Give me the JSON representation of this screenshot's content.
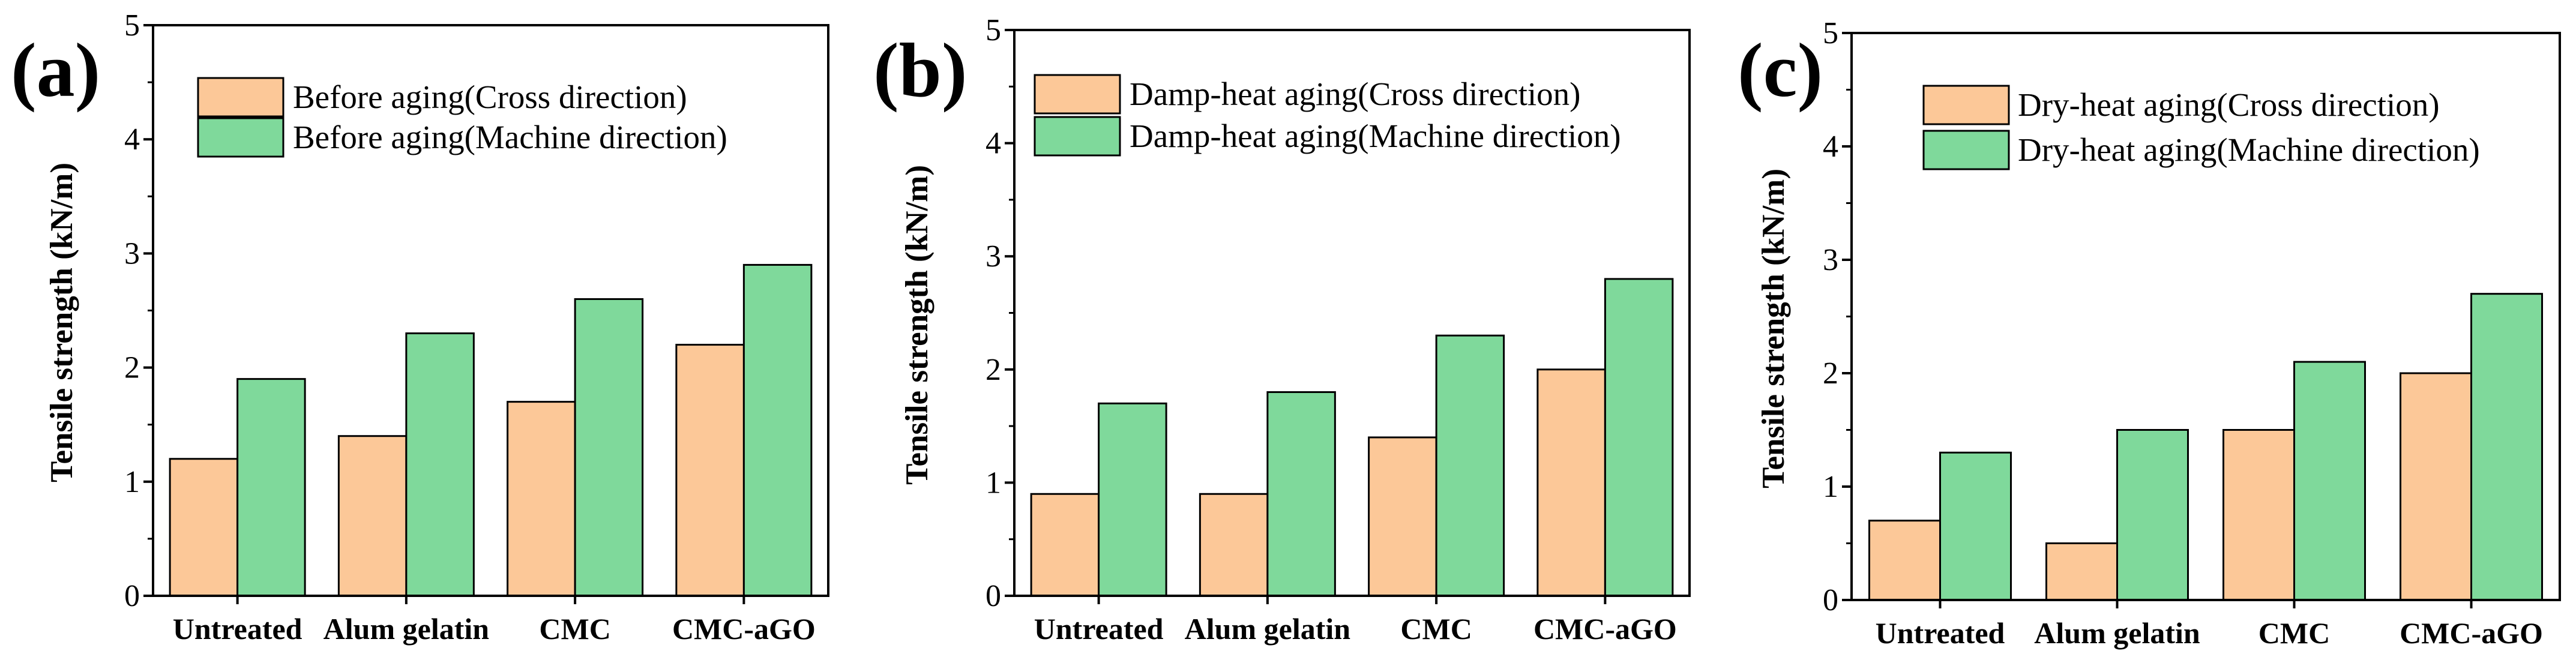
{
  "colors": {
    "cross": "#fcc898",
    "machine": "#7fd99b",
    "stroke": "#000000",
    "background": "#ffffff"
  },
  "chart_data": [
    {
      "type": "bar",
      "panel_label": "(a)",
      "title": "",
      "xlabel": "",
      "ylabel": "Tensile strength (kN/m)",
      "categories": [
        "Untreated",
        "Alum gelatin",
        "CMC",
        "CMC-aGO"
      ],
      "series": [
        {
          "name": "Before aging(Cross direction)",
          "values": [
            1.2,
            1.4,
            1.7,
            2.2
          ]
        },
        {
          "name": "Before aging(Machine direction)",
          "values": [
            1.9,
            2.3,
            2.6,
            2.9
          ]
        }
      ],
      "ylim": [
        0,
        5
      ],
      "yticks": [
        "0",
        "1",
        "2",
        "3",
        "4",
        "5"
      ],
      "legend_position": "top-left",
      "grid": false
    },
    {
      "type": "bar",
      "panel_label": "(b)",
      "title": "",
      "xlabel": "",
      "ylabel": "Tensile strength (kN/m)",
      "categories": [
        "Untreated",
        "Alum gelatin",
        "CMC",
        "CMC-aGO"
      ],
      "series": [
        {
          "name": "Damp-heat aging(Cross direction)",
          "values": [
            0.9,
            0.9,
            1.4,
            2.0
          ]
        },
        {
          "name": "Damp-heat aging(Machine direction)",
          "values": [
            1.7,
            1.8,
            2.3,
            2.8
          ]
        }
      ],
      "ylim": [
        0,
        5
      ],
      "yticks": [
        "0",
        "1",
        "2",
        "3",
        "4",
        "5"
      ],
      "legend_position": "top-left",
      "grid": false
    },
    {
      "type": "bar",
      "panel_label": "(c)",
      "title": "",
      "xlabel": "",
      "ylabel": "Tensile strength (kN/m)",
      "categories": [
        "Untreated",
        "Alum gelatin",
        "CMC",
        "CMC-aGO"
      ],
      "series": [
        {
          "name": "Dry-heat aging(Cross direction)",
          "values": [
            0.7,
            0.5,
            1.5,
            2.0
          ]
        },
        {
          "name": "Dry-heat aging(Machine direction)",
          "values": [
            1.3,
            1.5,
            2.1,
            2.7
          ]
        }
      ],
      "ylim": [
        0,
        5
      ],
      "yticks": [
        "0",
        "1",
        "2",
        "3",
        "4",
        "5"
      ],
      "legend_position": "top-right",
      "grid": false
    }
  ]
}
